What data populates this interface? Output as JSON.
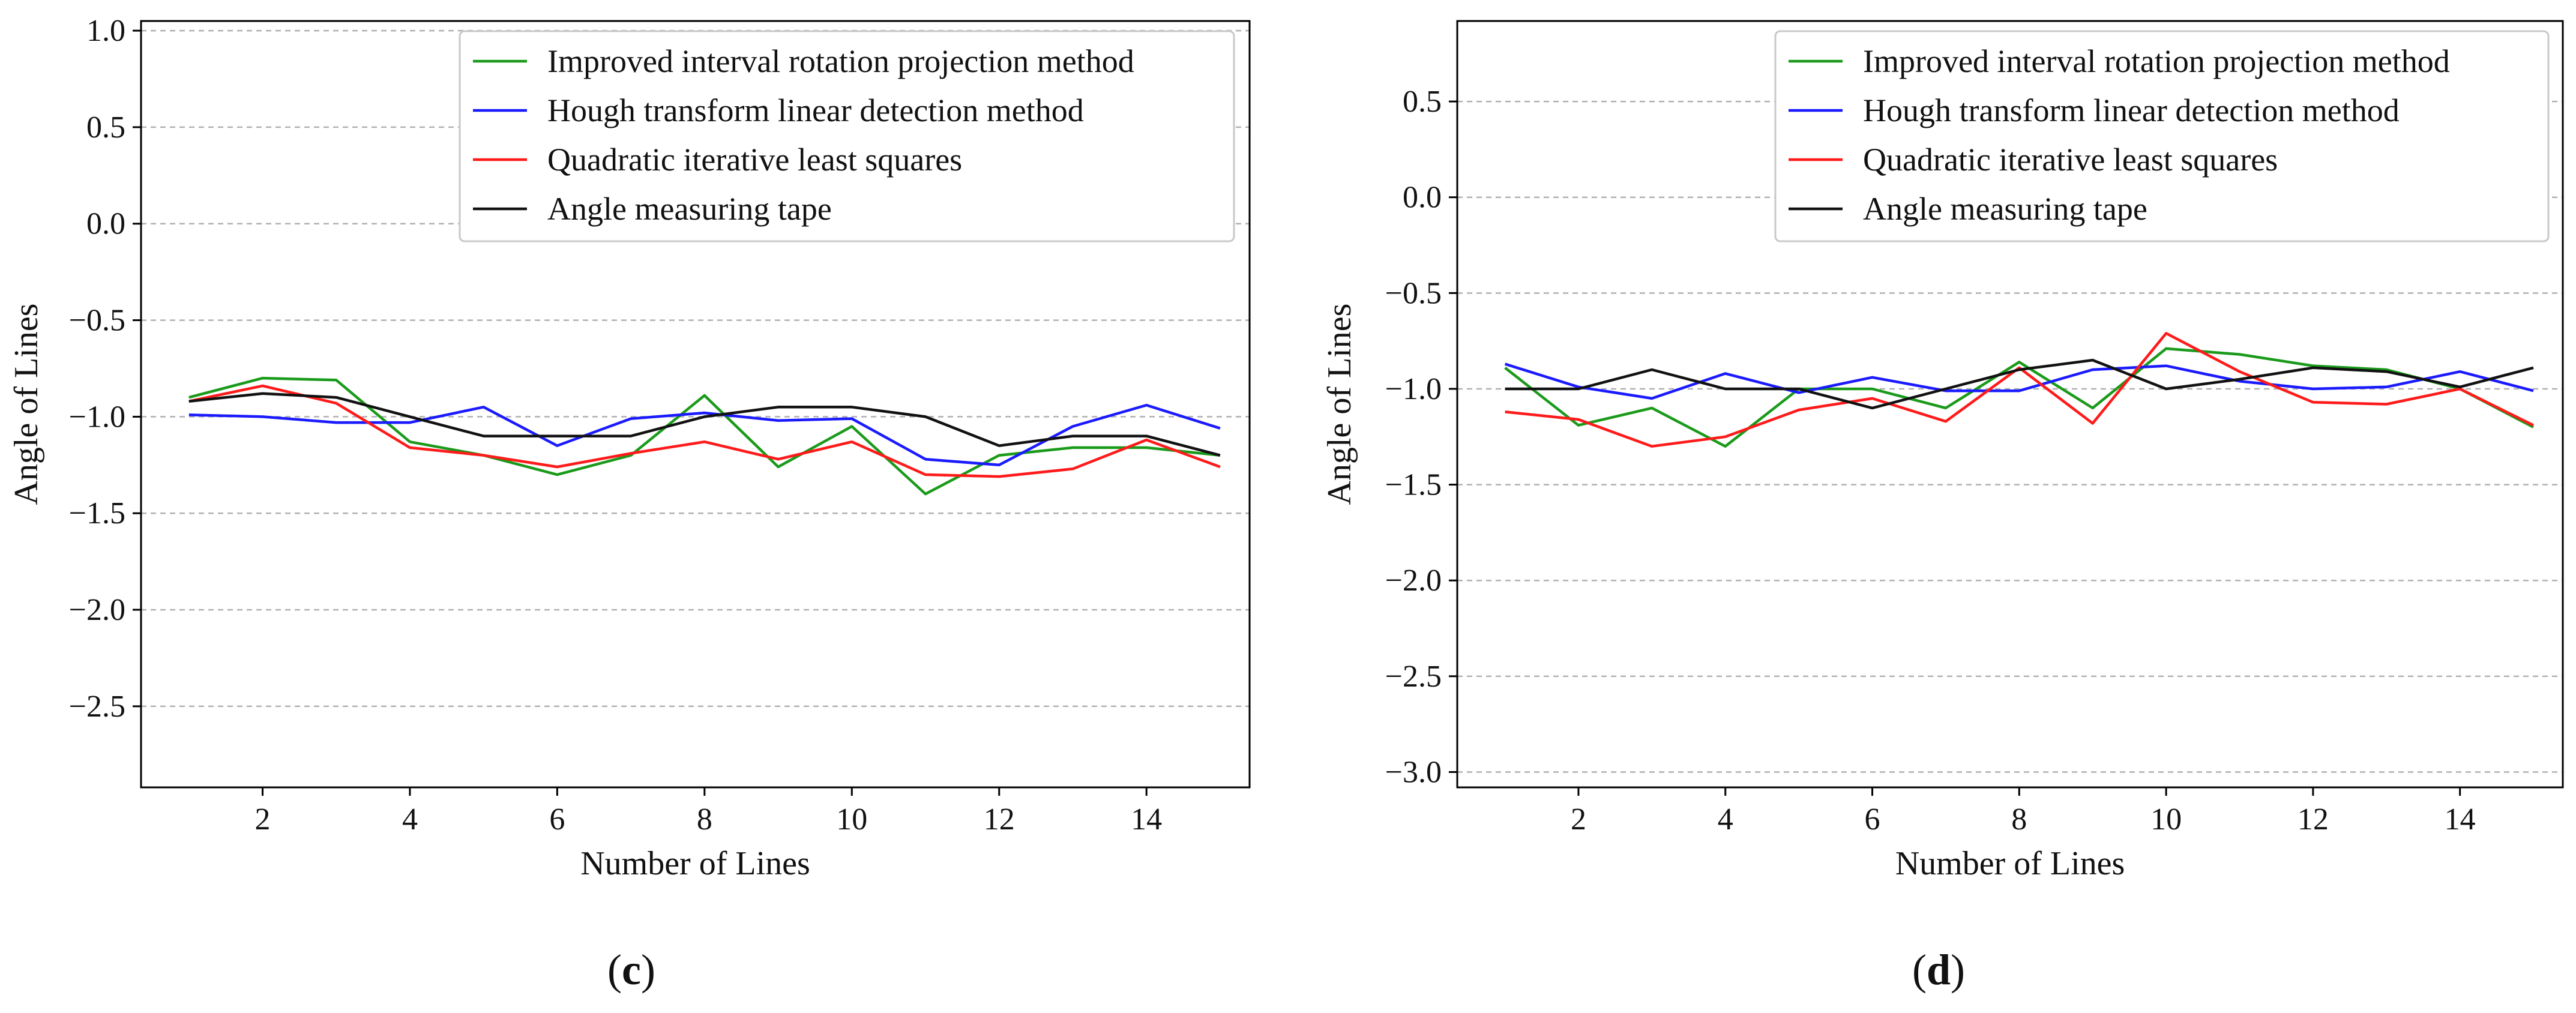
{
  "colors": {
    "green": "#1a9a1a",
    "blue": "#1a1aff",
    "red": "#ff1a1a",
    "black": "#111111"
  },
  "chart_data": [
    {
      "type": "line",
      "panel_label": "(c)",
      "xlabel": "Number of Lines",
      "ylabel": "Angle of Lines",
      "xlim": [
        0.35,
        15.4
      ],
      "ylim": [
        -2.92,
        1.05
      ],
      "xticks": [
        2,
        4,
        6,
        8,
        10,
        12,
        14
      ],
      "yticks": [
        1.0,
        0.5,
        0.0,
        -0.5,
        -1.0,
        -1.5,
        -2.0,
        -2.5
      ],
      "ytick_labels": [
        "1.0",
        "0.5",
        "0.0",
        "−0.5",
        "−1.0",
        "−1.5",
        "−2.0",
        "−2.5"
      ],
      "grid": "horizontal dashed",
      "legend_position": "top-right",
      "x": [
        1,
        2,
        3,
        4,
        5,
        6,
        7,
        8,
        9,
        10,
        11,
        12,
        13,
        14,
        15
      ],
      "series": [
        {
          "name": "Improved interval rotation projection method",
          "color": "green",
          "values": [
            -0.9,
            -0.8,
            -0.81,
            -1.13,
            -1.2,
            -1.3,
            -1.2,
            -0.89,
            -1.26,
            -1.05,
            -1.4,
            -1.2,
            -1.16,
            -1.16,
            -1.2
          ]
        },
        {
          "name": "Hough transform linear detection method",
          "color": "blue",
          "values": [
            -0.99,
            -1.0,
            -1.03,
            -1.03,
            -0.95,
            -1.15,
            -1.01,
            -0.98,
            -1.02,
            -1.01,
            -1.22,
            -1.25,
            -1.05,
            -0.94,
            -1.06
          ]
        },
        {
          "name": "Quadratic iterative least squares",
          "color": "red",
          "values": [
            -0.92,
            -0.84,
            -0.93,
            -1.16,
            -1.2,
            -1.26,
            -1.19,
            -1.13,
            -1.22,
            -1.13,
            -1.3,
            -1.31,
            -1.27,
            -1.12,
            -1.26
          ]
        },
        {
          "name": "Angle measuring tape",
          "color": "black",
          "values": [
            -0.92,
            -0.88,
            -0.9,
            -1.0,
            -1.1,
            -1.1,
            -1.1,
            -1.0,
            -0.95,
            -0.95,
            -1.0,
            -1.15,
            -1.1,
            -1.1,
            -1.2
          ]
        }
      ]
    },
    {
      "type": "line",
      "panel_label": "(d)",
      "xlabel": "Number of Lines",
      "ylabel": "Angle of Lines",
      "xlim": [
        0.35,
        15.4
      ],
      "ylim": [
        -3.08,
        0.92
      ],
      "xticks": [
        2,
        4,
        6,
        8,
        10,
        12,
        14
      ],
      "yticks": [
        0.5,
        0.0,
        -0.5,
        -1.0,
        -1.5,
        -2.0,
        -2.5,
        -3.0
      ],
      "ytick_labels": [
        "0.5",
        "0.0",
        "−0.5",
        "−1.0",
        "−1.5",
        "−2.0",
        "−2.5",
        "−3.0"
      ],
      "grid": "horizontal dashed",
      "legend_position": "top-right",
      "x": [
        1,
        2,
        3,
        4,
        5,
        6,
        7,
        8,
        9,
        10,
        11,
        12,
        13,
        14,
        15
      ],
      "series": [
        {
          "name": "Improved interval rotation projection method",
          "color": "green",
          "values": [
            -0.89,
            -1.19,
            -1.1,
            -1.3,
            -1.0,
            -1.0,
            -1.1,
            -0.86,
            -1.1,
            -0.79,
            -0.82,
            -0.88,
            -0.9,
            -1.0,
            -1.2
          ]
        },
        {
          "name": "Hough transform linear detection method",
          "color": "blue",
          "values": [
            -0.87,
            -0.99,
            -1.05,
            -0.92,
            -1.02,
            -0.94,
            -1.01,
            -1.01,
            -0.9,
            -0.88,
            -0.96,
            -1.0,
            -0.99,
            -0.91,
            -1.01
          ]
        },
        {
          "name": "Quadratic iterative least squares",
          "color": "red",
          "values": [
            -1.12,
            -1.16,
            -1.3,
            -1.25,
            -1.11,
            -1.05,
            -1.17,
            -0.89,
            -1.18,
            -0.71,
            -0.91,
            -1.07,
            -1.08,
            -1.0,
            -1.19
          ]
        },
        {
          "name": "Angle measuring tape",
          "color": "black",
          "values": [
            -1.0,
            -1.0,
            -0.9,
            -1.0,
            -1.0,
            -1.1,
            -1.0,
            -0.9,
            -0.85,
            -1.0,
            -0.95,
            -0.89,
            -0.91,
            -0.99,
            -0.89
          ]
        }
      ]
    }
  ]
}
